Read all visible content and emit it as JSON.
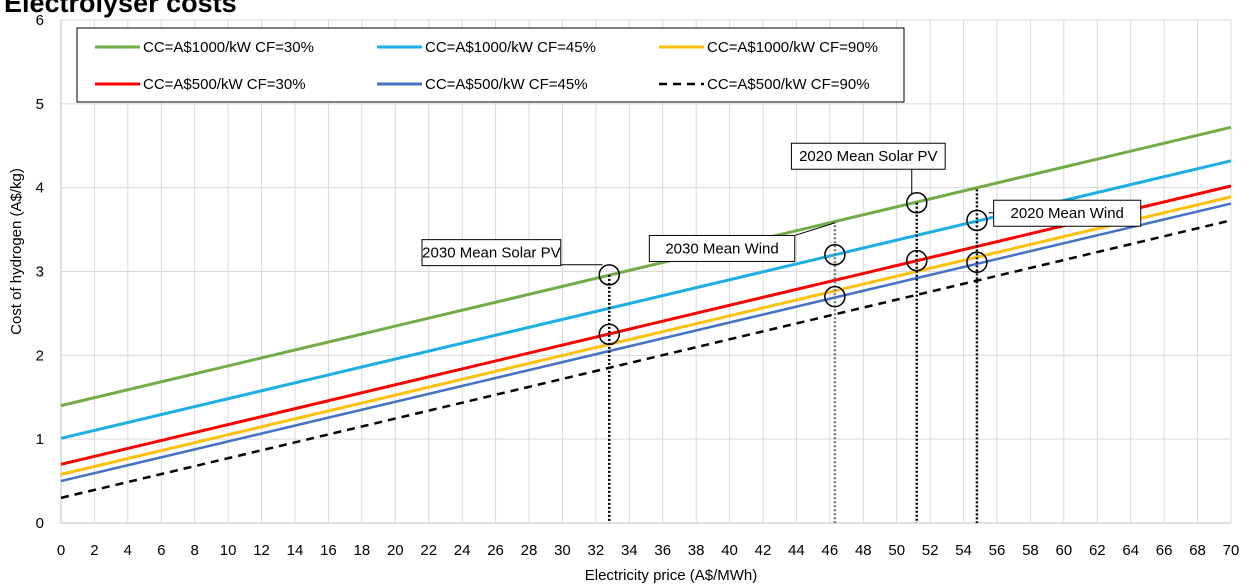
{
  "page": {
    "title": "Electrolyser costs"
  },
  "chart_data": {
    "type": "line",
    "title": "Electrolyser costs",
    "xlabel": "Electricity price (A$/MWh)",
    "ylabel": "Cost of hydrogen (A$/kg)",
    "xlim": [
      0,
      70
    ],
    "ylim": [
      0,
      6
    ],
    "x_ticks": [
      "0",
      "2",
      "4",
      "6",
      "8",
      "10",
      "12",
      "14",
      "16",
      "18",
      "20",
      "22",
      "24",
      "26",
      "28",
      "30",
      "32",
      "34",
      "36",
      "38",
      "40",
      "42",
      "44",
      "46",
      "48",
      "50",
      "52",
      "54",
      "56",
      "58",
      "60",
      "62",
      "64",
      "66",
      "68",
      "70"
    ],
    "y_ticks": [
      "0",
      "1",
      "2",
      "3",
      "4",
      "5",
      "6"
    ],
    "grid": true,
    "legend_position": "top-left",
    "series": [
      {
        "name": "CC=A$1000/kW CF=30%",
        "color": "#70ad47",
        "dash": "solid",
        "x": [
          0,
          70
        ],
        "y": [
          1.4,
          4.72
        ]
      },
      {
        "name": "CC=A$1000/kW CF=45%",
        "color": "#1cafe6",
        "dash": "solid",
        "x": [
          0,
          70
        ],
        "y": [
          1.01,
          4.32
        ]
      },
      {
        "name": "CC=A$1000/kW CF=90%",
        "color": "#ffc000",
        "dash": "solid",
        "x": [
          0,
          70
        ],
        "y": [
          0.58,
          3.89
        ]
      },
      {
        "name": "CC=A$500/kW CF=30%",
        "color": "#ff0000",
        "dash": "solid",
        "x": [
          0,
          70
        ],
        "y": [
          0.7,
          4.02
        ]
      },
      {
        "name": "CC=A$500/kW CF=45%",
        "color": "#4472c4",
        "dash": "solid",
        "x": [
          0,
          70
        ],
        "y": [
          0.5,
          3.81
        ]
      },
      {
        "name": "CC=A$500/kW CF=90%",
        "color": "#000000",
        "dash": "dashed",
        "x": [
          0,
          70
        ],
        "y": [
          0.3,
          3.61
        ]
      }
    ],
    "vertical_markers": [
      {
        "x": 32.8,
        "y_top": 2.96,
        "color": "#000000"
      },
      {
        "x": 46.3,
        "y_top": 3.6,
        "color": "#777777"
      },
      {
        "x": 51.2,
        "y_top": 3.82,
        "color": "#000000"
      },
      {
        "x": 54.8,
        "y_top": 3.98,
        "color": "#000000"
      }
    ],
    "markers": [
      {
        "x": 32.8,
        "y": 2.96
      },
      {
        "x": 32.8,
        "y": 2.25
      },
      {
        "x": 46.3,
        "y": 3.2
      },
      {
        "x": 46.3,
        "y": 2.7
      },
      {
        "x": 51.2,
        "y": 3.82
      },
      {
        "x": 51.2,
        "y": 3.13
      },
      {
        "x": 54.8,
        "y": 3.61
      },
      {
        "x": 54.8,
        "y": 3.11
      }
    ],
    "annotations": [
      {
        "text": "2030 Mean Solar PV",
        "box": {
          "x": 21.6,
          "y": 3.38
        },
        "box_w": 8.3,
        "anchor": "left",
        "leader_to": {
          "x": 32.4,
          "y": 3.08
        }
      },
      {
        "text": "2030 Mean Wind",
        "box": {
          "x": 35.2,
          "y": 3.43
        },
        "box_w": 8.7,
        "anchor": "left",
        "leader_to": {
          "x": 46.3,
          "y": 3.58
        }
      },
      {
        "text": "2020 Mean Solar PV",
        "box": {
          "x": 43.7,
          "y": 4.53
        },
        "box_w": 9.2,
        "anchor": "left",
        "leader_to": {
          "x": 50.9,
          "y": 3.92
        }
      },
      {
        "text": "2020 Mean Wind",
        "box": {
          "x": 55.8,
          "y": 3.85
        },
        "box_w": 8.8,
        "anchor": "left",
        "leader_to": {
          "x": 55.5,
          "y": 3.7
        }
      }
    ]
  }
}
